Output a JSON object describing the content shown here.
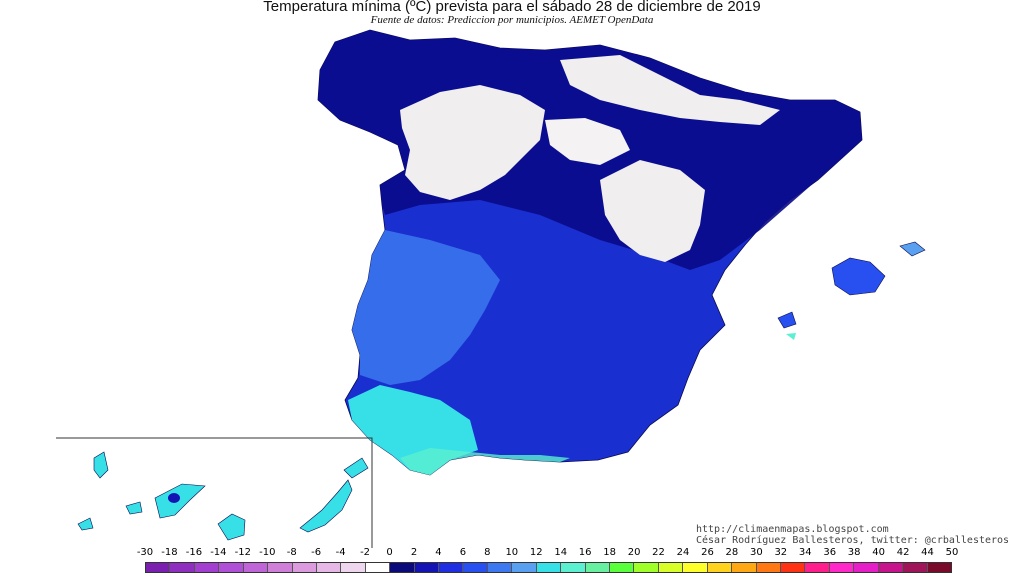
{
  "map": {
    "title": "Temperatura mínima (ºC) prevista para el sábado 28 de diciembre de 2019",
    "subtitle": "Fuente de datos: Prediccion por municipios. AEMET OpenData",
    "credit_url": "http://climaenmapas.blogspot.com",
    "credit_author": "César Rodríguez Ballesteros, twitter: @crballesteros"
  },
  "legend": {
    "labels": [
      "-30",
      "-18",
      "-16",
      "-14",
      "-12",
      "-10",
      "-8",
      "-6",
      "-4",
      "-2",
      "0",
      "2",
      "4",
      "6",
      "8",
      "10",
      "12",
      "14",
      "16",
      "18",
      "20",
      "22",
      "24",
      "26",
      "28",
      "30",
      "32",
      "34",
      "36",
      "38",
      "40",
      "42",
      "44",
      "50"
    ],
    "colors": [
      "#7a1fb0",
      "#8e2fc0",
      "#a23fd0",
      "#b050d6",
      "#c065d8",
      "#d07fd8",
      "#dc9adf",
      "#e6b8e6",
      "#efd6ef",
      "#ffffff",
      "#0a0a7a",
      "#1414b4",
      "#1e2ee0",
      "#2850f0",
      "#3c78f0",
      "#5aa0f0",
      "#36e0e6",
      "#5af0d0",
      "#66f0a0",
      "#5aff3c",
      "#a0ff28",
      "#d8ff28",
      "#ffff2a",
      "#ffd21e",
      "#ffa814",
      "#ff7814",
      "#ff3214",
      "#ff1e8c",
      "#ff28c8",
      "#e61ec8",
      "#c8148c",
      "#a0145a",
      "#7a0a2a"
    ]
  }
}
